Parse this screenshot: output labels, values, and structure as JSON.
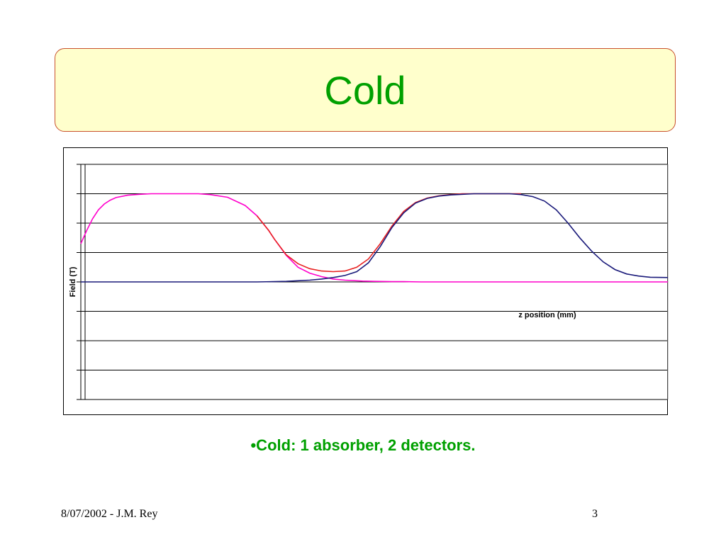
{
  "slide": {
    "title": "Cold",
    "bullet": "•Cold: 1 absorber, 2 detectors.",
    "footer_left": "8/07/2002 - J.M. Rey",
    "page_number": "3"
  },
  "chart_data": {
    "type": "line",
    "title": "",
    "xlabel": "z position (mm)",
    "ylabel": "Field (T)",
    "xlim": [
      0,
      100
    ],
    "ylim": [
      -4,
      4
    ],
    "gridlines_y": [
      -4,
      -3,
      -2,
      -1,
      0,
      1,
      2,
      3,
      4
    ],
    "tick_labels_visible": false,
    "series": [
      {
        "color": "#ff00cc",
        "x": [
          0,
          1,
          2,
          3,
          4,
          5,
          6,
          8,
          10,
          12,
          15,
          18,
          20,
          22,
          25,
          28,
          30,
          32,
          33,
          35,
          37,
          39,
          41,
          43,
          45,
          48,
          50,
          53,
          55,
          58,
          60,
          65,
          70,
          80,
          90,
          100
        ],
        "y": [
          1.3,
          1.75,
          2.15,
          2.45,
          2.65,
          2.78,
          2.87,
          2.95,
          2.98,
          3.0,
          3.0,
          3.0,
          3.0,
          2.97,
          2.88,
          2.6,
          2.25,
          1.75,
          1.45,
          0.9,
          0.5,
          0.3,
          0.18,
          0.1,
          0.06,
          0.03,
          0.02,
          0.01,
          0.01,
          0.0,
          0.0,
          0.0,
          0.0,
          0.0,
          0.0,
          0.0
        ]
      },
      {
        "color": "#e82020",
        "x": [
          30,
          32,
          33,
          35,
          37,
          39,
          41,
          43,
          45,
          47,
          49,
          51,
          53,
          55,
          57,
          59,
          61,
          63,
          65,
          67,
          70,
          72,
          75
        ],
        "y": [
          2.25,
          1.75,
          1.45,
          0.92,
          0.62,
          0.45,
          0.37,
          0.35,
          0.37,
          0.5,
          0.78,
          1.3,
          1.9,
          2.4,
          2.7,
          2.85,
          2.93,
          2.97,
          3.0,
          3.0,
          3.0,
          3.0,
          3.0
        ]
      },
      {
        "color": "#1a1a7a",
        "x": [
          0,
          10,
          20,
          25,
          30,
          35,
          37,
          39,
          41,
          43,
          45,
          47,
          49,
          51,
          53,
          55,
          57,
          59,
          61,
          63,
          65,
          67,
          70,
          73,
          75,
          77,
          79,
          81,
          83,
          85,
          87,
          89,
          91,
          93,
          95,
          97,
          100
        ],
        "y": [
          0.0,
          0.0,
          0.0,
          0.0,
          0.0,
          0.02,
          0.04,
          0.06,
          0.1,
          0.15,
          0.22,
          0.35,
          0.65,
          1.2,
          1.85,
          2.35,
          2.68,
          2.84,
          2.92,
          2.96,
          2.98,
          3.0,
          3.0,
          3.0,
          2.97,
          2.9,
          2.75,
          2.45,
          2.0,
          1.5,
          1.05,
          0.68,
          0.42,
          0.27,
          0.2,
          0.16,
          0.15
        ]
      }
    ]
  }
}
